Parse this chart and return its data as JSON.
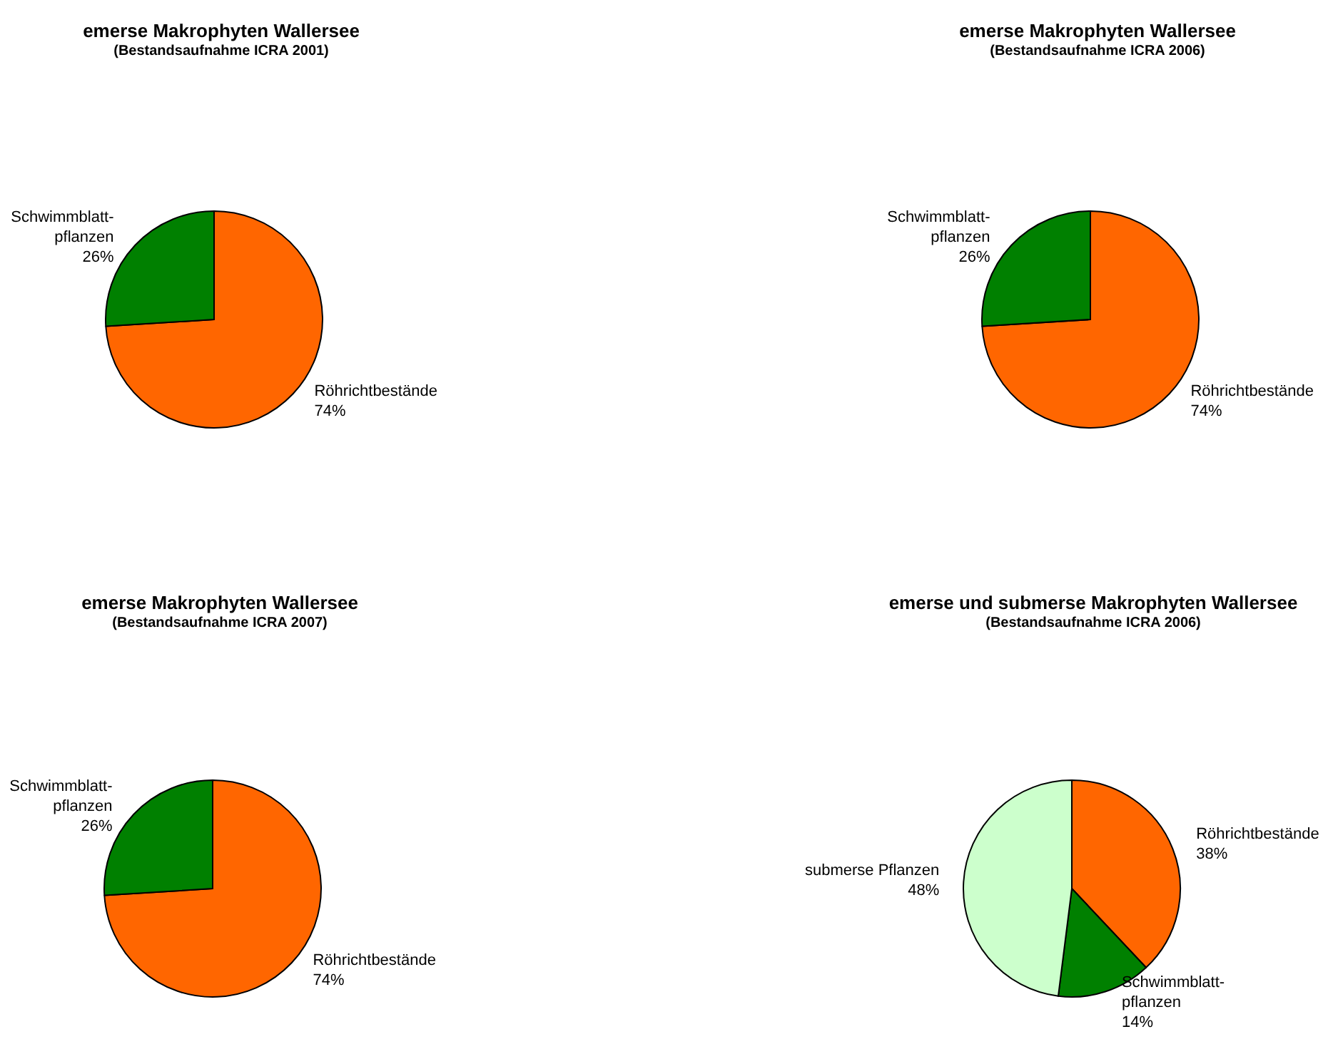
{
  "chart_data": [
    {
      "type": "pie",
      "title": "emerse Makrophyten Wallersee",
      "subtitle": "(Bestandsaufnahme ICRA 2001)",
      "categories": [
        "Röhrichtbestände",
        "Schwimmblatt-pflanzen"
      ],
      "values": [
        74,
        26
      ],
      "value_labels": [
        "74%",
        "26%"
      ],
      "colors": [
        "#ff6600",
        "#008000"
      ],
      "legend": false
    },
    {
      "type": "pie",
      "title": "emerse Makrophyten Wallersee",
      "subtitle": "(Bestandsaufnahme ICRA 2006)",
      "categories": [
        "Röhrichtbestände",
        "Schwimmblatt-pflanzen"
      ],
      "values": [
        74,
        26
      ],
      "value_labels": [
        "74%",
        "26%"
      ],
      "colors": [
        "#ff6600",
        "#008000"
      ],
      "legend": false
    },
    {
      "type": "pie",
      "title": "emerse Makrophyten Wallersee",
      "subtitle": "(Bestandsaufnahme ICRA 2007)",
      "categories": [
        "Röhrichtbestände",
        "Schwimmblatt-pflanzen"
      ],
      "values": [
        74,
        26
      ],
      "value_labels": [
        "74%",
        "26%"
      ],
      "colors": [
        "#ff6600",
        "#008000"
      ],
      "legend": false
    },
    {
      "type": "pie",
      "title": "emerse und submerse Makrophyten Wallersee",
      "subtitle": "(Bestandsaufnahme ICRA 2006)",
      "categories": [
        "Röhrichtbestände",
        "Schwimmblatt-pflanzen",
        "submerse Pflanzen"
      ],
      "values": [
        38,
        14,
        48
      ],
      "value_labels": [
        "38%",
        "14%",
        "48%"
      ],
      "colors": [
        "#ff6600",
        "#008000",
        "#ccffcc"
      ],
      "legend": false
    }
  ]
}
